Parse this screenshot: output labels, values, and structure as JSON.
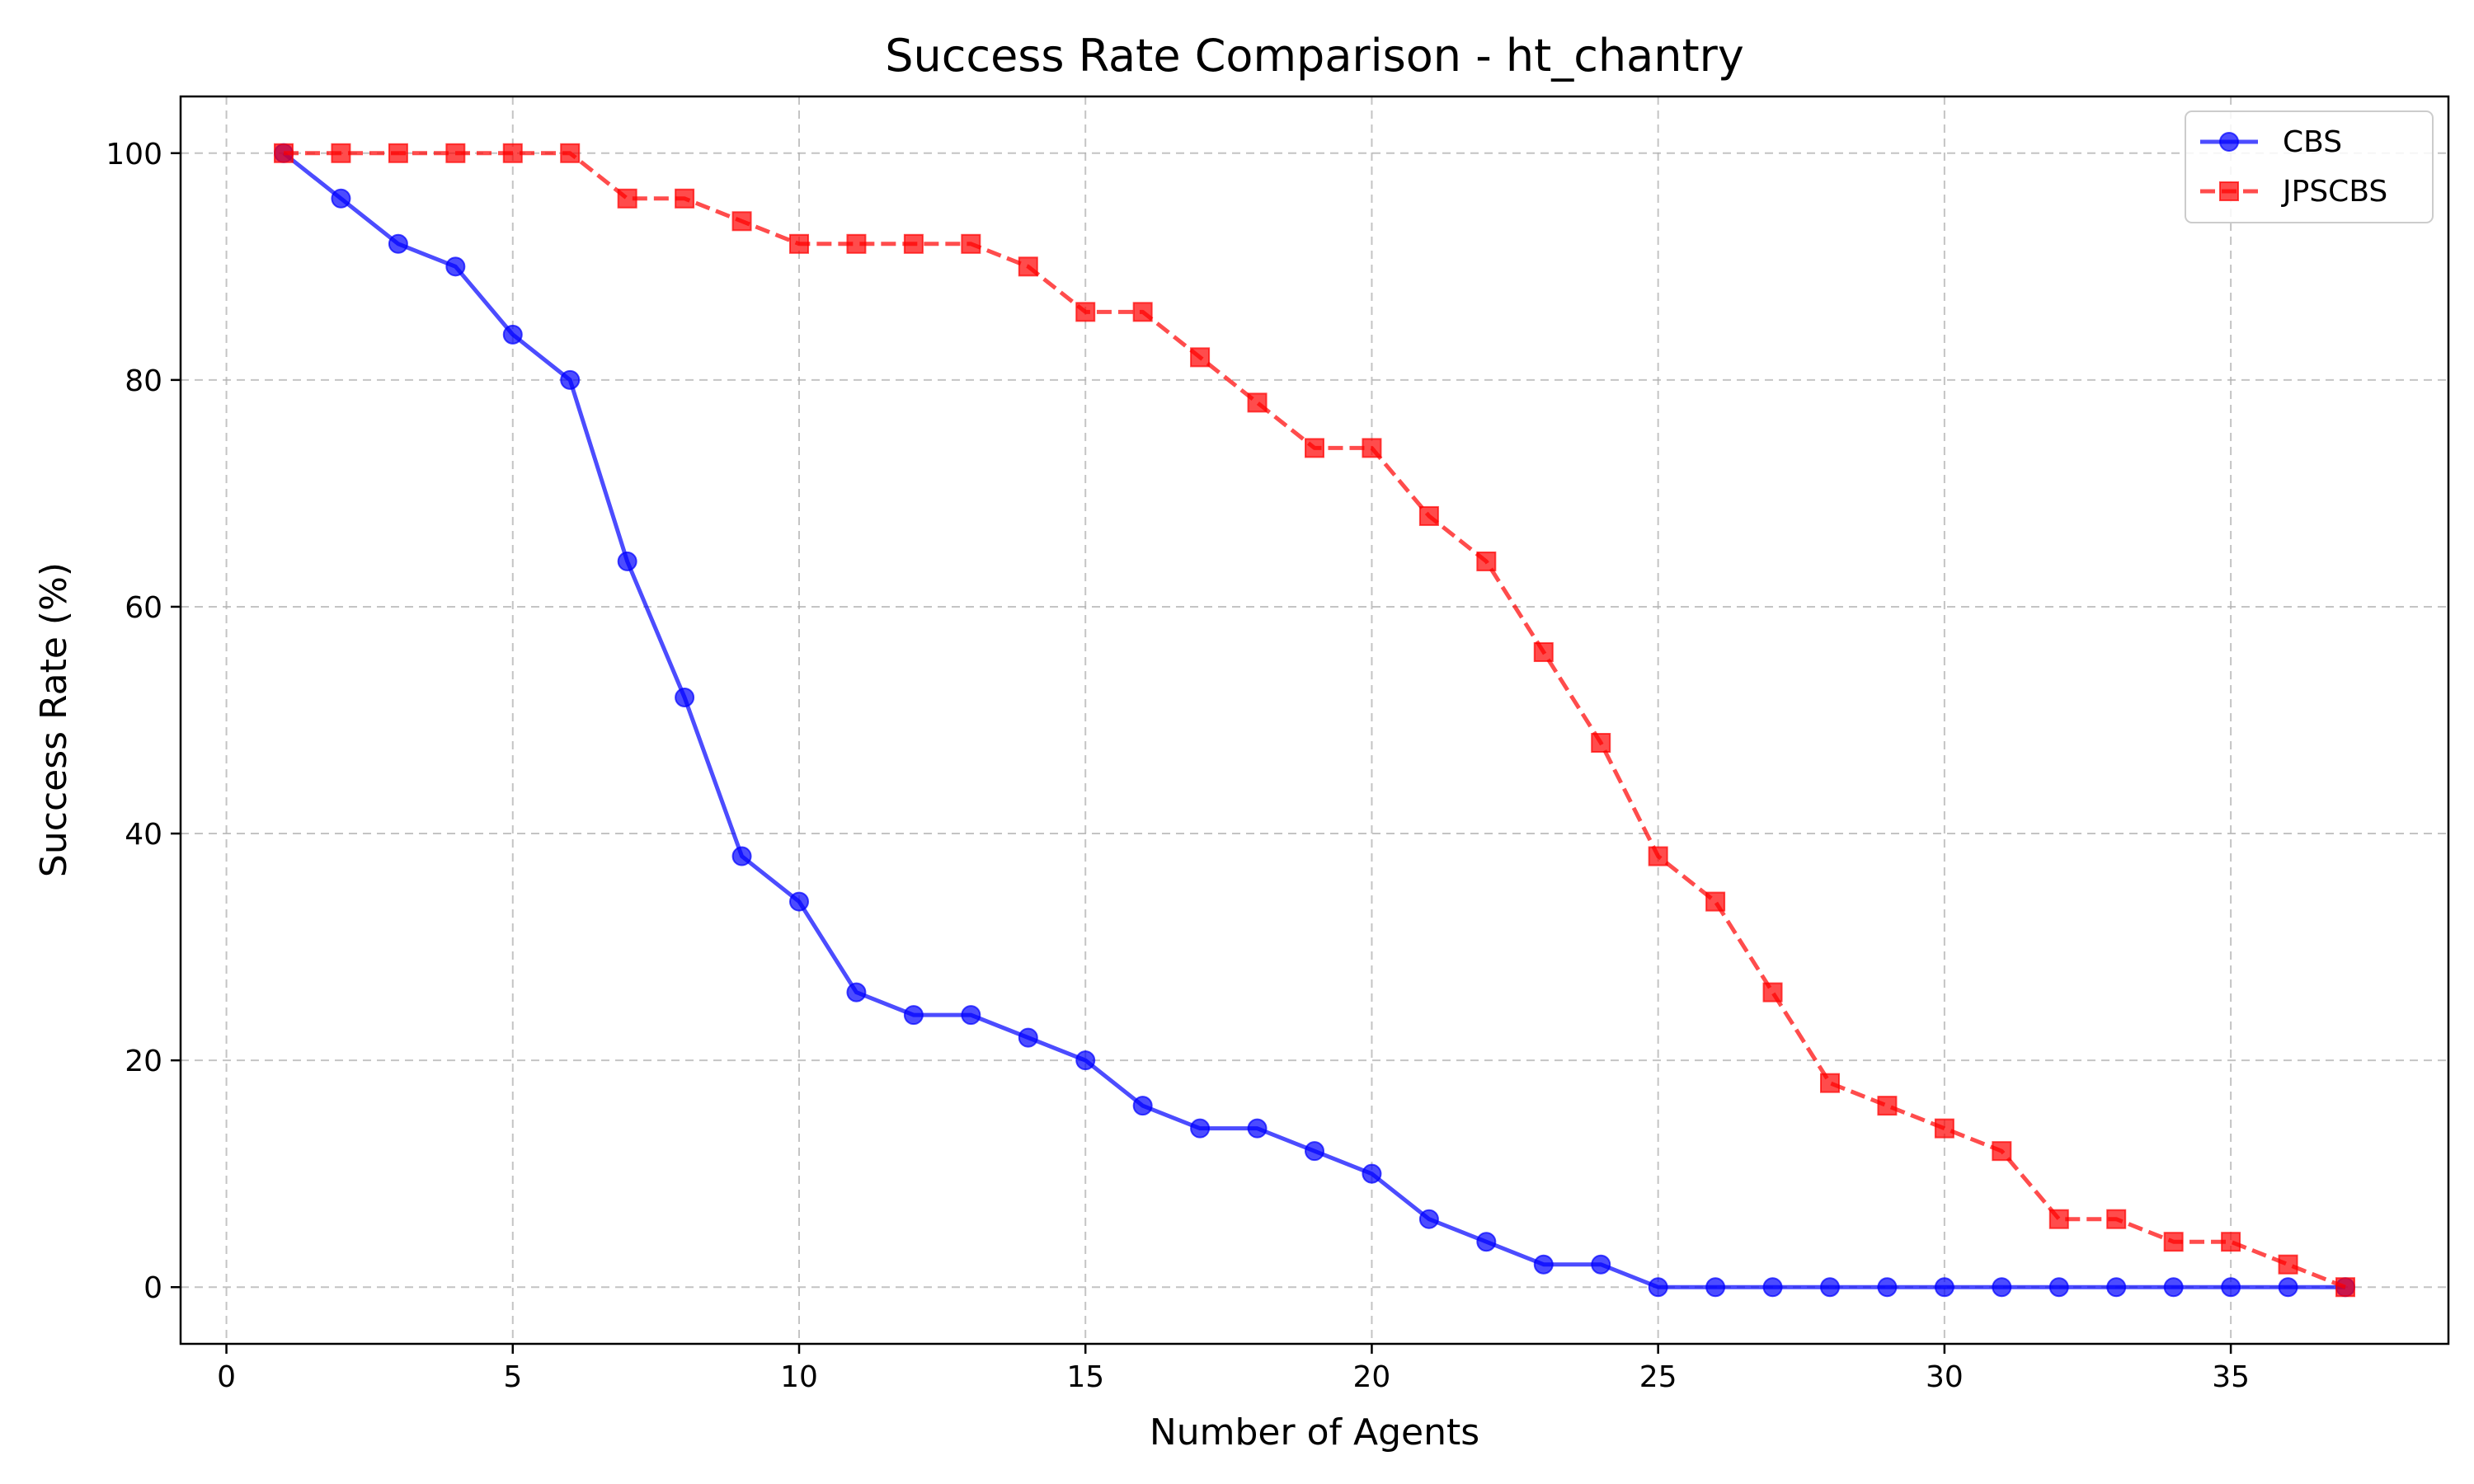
{
  "chart_data": {
    "type": "line",
    "title": "Success Rate Comparison - ht_chantry",
    "xlabel": "Number of Agents",
    "ylabel": "Success Rate (%)",
    "xlim": [
      -0.8,
      38.8
    ],
    "ylim": [
      -5,
      105
    ],
    "xticks": [
      0,
      5,
      10,
      15,
      20,
      25,
      30,
      35
    ],
    "yticks": [
      0,
      20,
      40,
      60,
      80,
      100
    ],
    "grid": true,
    "legend_position": "top-right",
    "x": [
      1,
      2,
      3,
      4,
      5,
      6,
      7,
      8,
      9,
      10,
      11,
      12,
      13,
      14,
      15,
      16,
      17,
      18,
      19,
      20,
      21,
      22,
      23,
      24,
      25,
      26,
      27,
      28,
      29,
      30,
      31,
      32,
      33,
      34,
      35,
      36,
      37
    ],
    "series": [
      {
        "name": "CBS",
        "color": "#0000ff",
        "line_style": "solid",
        "marker": "circle",
        "values": [
          100,
          96,
          92,
          90,
          84,
          80,
          64,
          52,
          38,
          34,
          26,
          24,
          24,
          22,
          20,
          16,
          14,
          14,
          12,
          10,
          6,
          4,
          2,
          2,
          0,
          0,
          0,
          0,
          0,
          0,
          0,
          0,
          0,
          0,
          0,
          0,
          0
        ]
      },
      {
        "name": "JPSCBS",
        "color": "#ff0000",
        "line_style": "dashed",
        "marker": "square",
        "values": [
          100,
          100,
          100,
          100,
          100,
          100,
          96,
          96,
          94,
          92,
          92,
          92,
          92,
          90,
          86,
          86,
          82,
          78,
          74,
          74,
          68,
          64,
          56,
          48,
          38,
          34,
          26,
          18,
          16,
          14,
          12,
          6,
          6,
          4,
          4,
          2,
          0
        ]
      }
    ]
  }
}
